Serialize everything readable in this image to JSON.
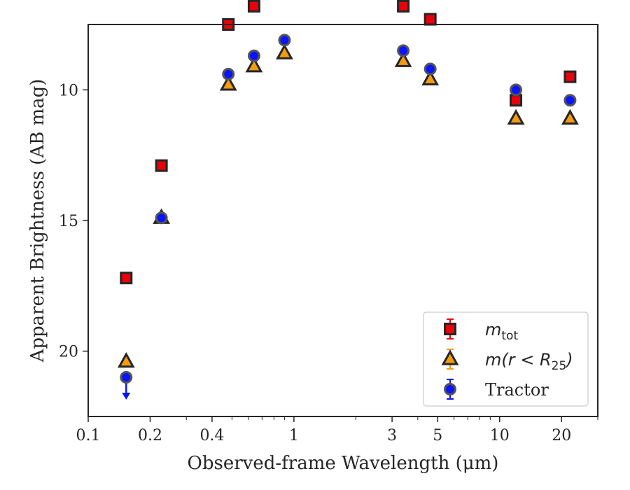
{
  "chart_data": {
    "type": "scatter",
    "xlabel": "Observed-frame Wavelength (μm)",
    "ylabel": "Apparent Brightness (AB mag)",
    "xscale": "log",
    "xlim": [
      0.1,
      30
    ],
    "ylim": [
      22.5,
      7.5
    ],
    "y_inverted": true,
    "x_tick_labels": [
      "0.1",
      "0.2",
      "0.4",
      "1",
      "3",
      "5",
      "10",
      "20"
    ],
    "x_tick_values": [
      0.1,
      0.2,
      0.4,
      1,
      3,
      5,
      10,
      20
    ],
    "y_tick_values": [
      10,
      15,
      20
    ],
    "y_tick_labels": [
      "10",
      "15",
      "20"
    ],
    "grid": false,
    "legend_placement": "bottom-right",
    "series": [
      {
        "name": "m_tot",
        "legend_label": "m",
        "legend_sub": "tot",
        "marker": "square",
        "color": "#e8000b",
        "edge_color": "#262626",
        "x": [
          0.153,
          0.227,
          0.48,
          0.64,
          3.4,
          4.6,
          12.0,
          22.0
        ],
        "y": [
          17.2,
          12.9,
          7.5,
          6.8,
          6.8,
          7.3,
          10.4,
          9.5
        ]
      },
      {
        "name": "m(r<R25)",
        "legend_label": "m(r < R",
        "legend_sub": "25",
        "legend_close": ")",
        "marker": "triangle",
        "color": "#f39c12",
        "edge_color": "#262626",
        "x": [
          0.153,
          0.227,
          0.48,
          0.64,
          0.9,
          3.4,
          4.6,
          12.0,
          22.0
        ],
        "y": [
          20.4,
          14.9,
          9.8,
          9.1,
          8.6,
          8.9,
          9.6,
          11.1,
          11.1
        ]
      },
      {
        "name": "Tractor",
        "legend_label": "Tractor",
        "marker": "circle",
        "color": "#0b14ff",
        "edge_color": "#555555",
        "x": [
          0.153,
          0.227,
          0.48,
          0.64,
          0.9,
          3.4,
          4.6,
          12.0,
          22.0
        ],
        "y": [
          21.0,
          14.9,
          9.4,
          8.7,
          8.1,
          8.5,
          9.2,
          10.0,
          10.4
        ],
        "upper_limit": [
          true,
          false,
          false,
          false,
          false,
          false,
          false,
          false,
          false
        ]
      }
    ]
  }
}
